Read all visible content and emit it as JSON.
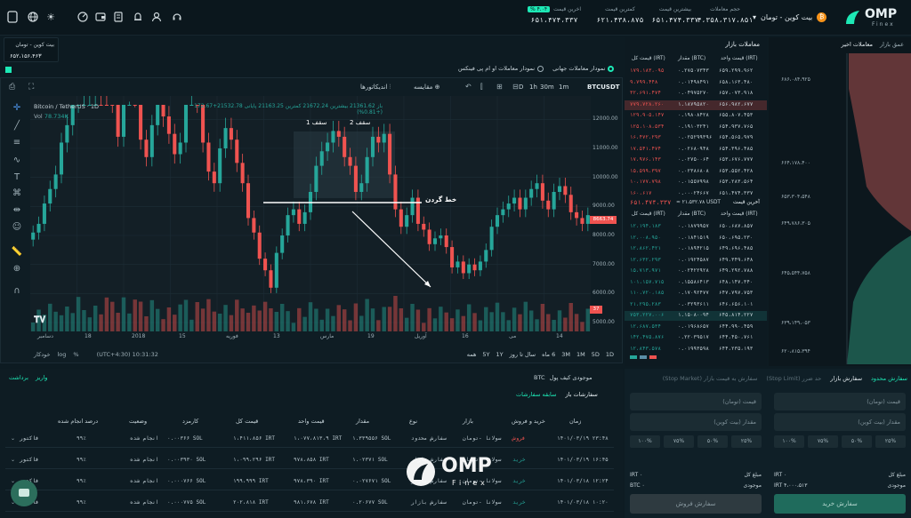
{
  "header": {
    "logo_text": "OMP",
    "logo_sub": "Finex",
    "pair_selector": "بیت کوین - تومان",
    "stats": [
      {
        "label": "حجم معاملات",
        "value": "۴،۳۵۸،۳۱۷،۸۵۱"
      },
      {
        "label": "بیشترین قیمت",
        "value": "۶۵۱،۴۷۴،۳۳۷"
      },
      {
        "label": "کمترین قیمت",
        "value": "۶۲۱،۴۳۸،۸۷۵"
      },
      {
        "label": "اخرین قیمت",
        "value": "۶۵۱،۴۷۴،۳۳۷"
      }
    ],
    "change_badge": "% ۴.۰۴"
  },
  "ticker_box": {
    "title": "بیت کوین - تومان",
    "value": "۶۵۲،۱۵۶،۴۶۳"
  },
  "chart_options": {
    "world_chart": "نمودار معاملات جهانی",
    "omp_chart": "نمودار معاملات او ام پی فینکس"
  },
  "chart_toolbar": {
    "symbol": "BTCUSDT",
    "timeframes": [
      "1m",
      "30m",
      "1h",
      "D"
    ],
    "compare": "مقایسه",
    "indicators": "اندیکاتورها"
  },
  "chart_legend": {
    "name": "Bitcoin / TetherUS · 1D",
    "vol": "Vol",
    "vol_value": "78.734K",
    "ohlc": "باز 21361.62  بیشترین 21672.24  کمترین 21163.25  پایانی 21532.78+172.67 (+0.81%)"
  },
  "annotations": {
    "top1": "سقف 1",
    "top2": "سقف 2",
    "neckline": "خط گردن"
  },
  "price_axis": [
    "12000.00",
    "11000.00",
    "10000.00",
    "9000.00",
    "8000.00",
    "7000.00",
    "6000.00",
    "5000.00"
  ],
  "price_tag": "8663.74",
  "vol_tag": "37",
  "time_axis": [
    "دسامبر",
    "18",
    "2018",
    "15",
    "فوریه",
    "13",
    "مارس",
    "19",
    "آوریل",
    "16",
    "می",
    "14"
  ],
  "bottom_toolbar": {
    "ranges": [
      "1D",
      "5D",
      "1M",
      "3M",
      "6 ماه",
      "سال تا روز",
      "1Y",
      "5Y",
      "همه"
    ],
    "clock": "(UTC+4:30) 10:31:32",
    "pct": "%",
    "log": "log",
    "auto": "خودکار"
  },
  "orderbook": {
    "title": "معاملات بازار",
    "cols": [
      "قیمت کل (IRT)",
      "مقدار (BTC)",
      "قیمت واحد (IRT)"
    ],
    "sells": [
      [
        "۱۷۹،۱۸۳،۰۹۵",
        "۰.۲۷۵۰۷۳۴۳",
        "۶۵۹،۲۹۹،۹۶۲"
      ],
      [
        "۹،۷۹۹،۴۴۸",
        "۰.۰۱۴۹۸۴۹۱",
        "۶۵۸،۱۶۳،۴۸۰"
      ],
      [
        "۳۲،۶۹۱،۴۷۴",
        "۰.۰۴۹۷۵۲۷۰",
        "۶۵۷،۰۷۳،۹۱۸"
      ],
      [
        "۷۷۹،۷۲۸،۲۶۰",
        "۱.۱۸۷۹۵۸۲۰",
        "۶۵۶،۹۸۲،۶۷۷"
      ],
      [
        "۱۲۹،۹۰۵،۱۴۷",
        "۰.۱۹۸۰۸۴۲۸",
        "۶۵۵،۸۰۷،۴۵۳"
      ],
      [
        "۱۲۵،۱۰۸،۵۳۴",
        "۰.۱۹۱۰۳۲۴۱",
        "۶۵۴،۹۳۷،۷۶۵"
      ],
      [
        "۱۶،۴۷۲،۲۹۳",
        "۰.۰۲۵۲۹۹۳۹۶",
        "۶۵۴،۵۶۵،۹۷۹"
      ],
      [
        "۱۷،۵۴۱،۴۷۴",
        "۰.۰۲۶۸۰۹۴۸",
        "۶۵۴،۳۹۶،۴۸۵"
      ],
      [
        "۱۷،۹۷۶،۱۴۳",
        "۰.۰۲۷۵۰۰۶۴",
        "۶۵۳،۶۷۶،۷۷۷"
      ],
      [
        "۱۵،۵۹۹،۳۹۷",
        "۰.۰۲۳۸۶۸۰۸",
        "۶۵۳،۵۵۲،۴۲۸"
      ],
      [
        "۱۰،۱۷۷،۷۹۸",
        "۰.۰۱۵۵۷۹۹۸",
        "۶۵۳،۲۸۳،۵۶۴"
      ],
      [
        "۱۶۰،۶۱۷",
        "۰.۰۰۰۲۴۶۶۷",
        "۶۵۱،۴۷۴،۳۳۷"
      ]
    ],
    "last_label": "آخرین قیمت",
    "last_price": "۶۵۱،۴۷۴،۳۳۷",
    "last_usdt": "≈ ۲۱،۵۳۲.۷۸ USDT",
    "buys": [
      [
        "۱۲،۱۹۴،۱۸۳",
        "۰.۰۱۸۷۹۹۵۷",
        "۶۵۰،۶۸۷،۸۵۷"
      ],
      [
        "۱۲،۰۰۸،۹۵۰",
        "۰.۰۱۸۴۱۵۱۹",
        "۶۵۰،۶۹۵،۲۳۰"
      ],
      [
        "۱۲،۸۶۲،۴۲۱",
        "۰.۰۱۸۹۴۲۱۵",
        "۶۴۹،۶۹۶،۴۸۵"
      ],
      [
        "۱۲،۶۳۲،۲۹۳",
        "۰.۰۱۹۲۴۵۸۷",
        "۶۴۹،۳۴۹،۶۴۸"
      ],
      [
        "۱۵،۷۱۳،۹۷۱",
        "۰.۰۲۴۲۲۹۲۸",
        "۶۴۹،۲۹۲،۷۸۸"
      ],
      [
        "۱۰۱،۱۵۷،۷۱۵",
        "۰.۱۵۵۸۶۴۱۳",
        "۶۴۸،۱۴۷،۳۴۰"
      ],
      [
        "۱۱۰،۷۲۰،۱۸۵",
        "۰.۱۷۰۹۲۴۷۷",
        "۶۴۷،۷۹۷،۷۵۳"
      ],
      [
        "۲۱،۲۹۵،۲۸۳",
        "۰.۰۳۲۹۳۶۱۱",
        "۶۴۶،۶۵۶،۱۰۱"
      ],
      [
        "۷۵۳،۲۲۷،۰۰۶",
        "۱.۱۵۰۸۰۰۹۴",
        "۶۴۵،۸۱۴،۲۲۷"
      ],
      [
        "۱۲،۶۸۷،۵۳۴",
        "۰.۰۱۹۶۸۶۵۷",
        "۶۴۴،۹۹۰،۴۵۹"
      ],
      [
        "۱۴۲،۴۷۵،۸۷۶",
        "۰.۲۲۰۳۹۵۱۷",
        "۶۴۴،۴۵۰،۷۶۱"
      ],
      [
        "۱۲،۸۴۳،۵۷۸",
        "۰.۰۱۹۹۳۵۹۸",
        "۶۴۴،۲۳۵،۱۹۳"
      ]
    ]
  },
  "depth": {
    "tabs": [
      "معاملات اخیر",
      "عمق بازار"
    ],
    "labels": [
      "۶۸۶،۰۸۴،۹۲۵",
      "۶۶۴،۱۷۸،۴۰۰",
      "۶۵۳،۳۰۴،۵۴۸",
      "۶۴۹،۷۸۶،۳۰۵",
      "۶۴۵،۵۴۴،۷۵۸",
      "۶۳۹،۱۴۹،۰۵۳",
      "۶۲۰،۸۱۵،۳۹۴"
    ]
  },
  "wallet": {
    "label": "موجودی کیف پول",
    "coin": "BTC",
    "deposit": "واریز",
    "withdraw": "برداشت"
  },
  "orders": {
    "tabs": [
      "سفارشات باز",
      "سابقه سفارشات"
    ],
    "headers": [
      "زمان",
      "خرید و فروش",
      "بازار",
      "نوع",
      "مقدار",
      "قیمت واحد",
      "قیمت کل",
      "کارمزد",
      "وضعیت",
      "درصد انجام شده"
    ],
    "rows": [
      [
        "۱۴۰۱/۰۳/۱۹ ۲۳:۴۸",
        "فروش",
        "سولانا -تومان",
        "سفارش محدود",
        "۱.۳۳۹۵۵۶ SOL",
        "۱،۰۷۷،۸۱۳،۹ IRT",
        "۱،۴۱۱،۸۵۶ IRT",
        "۰.۰۰۳۶۶ SOL",
        "انجام شده",
        "۹۹٪",
        "فاکتور"
      ],
      [
        "۱۴۰۱/۰۳/۱۹ ۱۶:۴۵",
        "خرید",
        "سولانا -تومان",
        "سفارش بازار",
        "۱.۰۲۳۷۱ SOL",
        "۹۷۸،۸۵۸ IRT",
        "۱،۰۹۹،۲۹۶ IRT",
        "۰.۰۰۳۹۳۰ SOL",
        "انجام شده",
        "۹۹٪",
        "فاکتور"
      ],
      [
        "۱۴۰۱/۰۳/۱۸ ۱۲:۲۴",
        "خرید",
        "سولانا -تومان",
        "سفارش بازار",
        "۰.۰۲۷۶۷۱ SOL",
        "۹۷۸،۳۹۰ IRT",
        "۱۹۹،۹۹۹ IRT",
        "۰.۰۰۰۷۶۶ SOL",
        "انجام شده",
        "۹۹٪",
        "فاکتور"
      ],
      [
        "۱۴۰۱/۰۳/۱۸ ۱۰:۲۰",
        "خرید",
        "سولانا -تومان",
        "سفارش بازار",
        "۰.۲۰۶۷۷ SOL",
        "۹۸۱،۶۷۸ IRT",
        "۲۰۲،۸۱۸ IRT",
        "۰.۰۰۰۷۷۵ SOL",
        "انجام شده",
        "۹۹٪",
        "فاکتور"
      ]
    ]
  },
  "trade": {
    "tabs": [
      "سفارش محدود",
      "سفارش بازار",
      "حد ضرر (Stop Limit)",
      "سفارش به قیمت بازار (Stop Market)"
    ],
    "buy": {
      "price": "قیمت (تومان)",
      "amount": "مقدار (بیت کوین)",
      "total_label": "مبلغ کل",
      "total": "IRT ۰",
      "balance_label": "موجودی",
      "balance": "IRT ۴،۰۰۰،۵۱۳",
      "button": "سفارش خرید"
    },
    "sell": {
      "price": "قیمت (تومان)",
      "amount": "مقدار (بیت کوین)",
      "total_label": "مبلغ کل",
      "total": "IRT ۰",
      "balance_label": "موجودی",
      "balance": "BTC ۰",
      "button": "سفارش فروش"
    },
    "pcts": [
      "۲۵%",
      "۵۰%",
      "۷۵%",
      "۱۰۰%"
    ]
  },
  "watermark": {
    "text": "OMP",
    "sub": "Finex"
  },
  "colors": {
    "up": "#26a69a",
    "down": "#ef5350",
    "accent": "#1de9b6"
  },
  "chart_data": {
    "type": "candlestick",
    "title": "Bitcoin / TetherUS · 1D",
    "x_labels": [
      "دسامبر",
      "18",
      "2018",
      "15",
      "فوریه",
      "13",
      "مارس",
      "19",
      "آوریل",
      "16",
      "می",
      "14"
    ],
    "ylim": [
      5000,
      12500
    ],
    "close": [
      8100,
      8400,
      9100,
      9600,
      10100,
      11200,
      11800,
      12600,
      13900,
      14500,
      15200,
      15800,
      15300,
      14200,
      12600,
      11400,
      13000,
      13500,
      12800,
      11300,
      10700,
      11800,
      12800,
      12100,
      11500,
      10800,
      11200,
      13300,
      13800,
      12600,
      11200,
      10200,
      9800,
      11000,
      11700,
      11300,
      10500,
      9800,
      8600,
      8100,
      7200,
      6800,
      6200,
      7400,
      8000,
      8700,
      8900,
      8400,
      8800,
      9500,
      10400,
      10900,
      11200,
      11600,
      11400,
      10700,
      10400,
      9500,
      9800,
      10700,
      11400,
      11200,
      11500,
      10100,
      8900,
      8300,
      8700,
      9300,
      8400,
      8200,
      7700,
      7900,
      8000,
      7600,
      6900,
      7100,
      6700,
      7000,
      6800,
      7100,
      7500,
      8300,
      8700,
      8900,
      9100,
      9300,
      8900,
      9300,
      9600,
      9800,
      9200,
      8900,
      9500,
      9700,
      9400,
      8800,
      8600,
      8400,
      8700
    ]
  }
}
